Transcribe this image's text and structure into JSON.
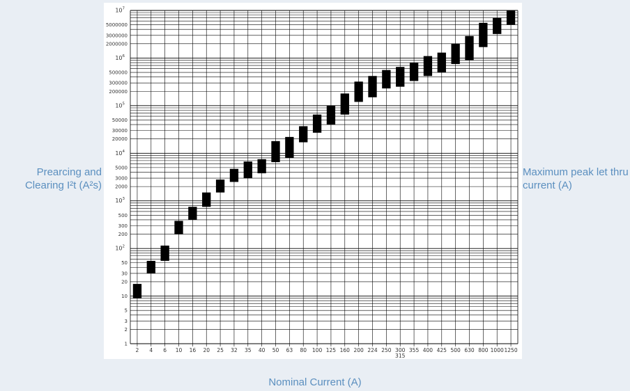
{
  "labels": {
    "left_axis": "Prearcing and Clearing I²t (A²s)",
    "right_axis": "Maximum peak let thru current (A)",
    "x_axis": "Nominal Current (A)"
  },
  "chart_data": {
    "type": "bar",
    "scale": "log",
    "ylim": [
      1,
      10000000
    ],
    "grid": true,
    "xlabel": "Nominal Current (A)",
    "ylabel": "Prearcing and Clearing I²t (A²s)",
    "ylabel_right": "Maximum peak let thru current (A)",
    "bar_color": "#000000",
    "categories": [
      "2",
      "4",
      "6",
      "10",
      "16",
      "20",
      "25",
      "32",
      "35",
      "40",
      "50",
      "63",
      "80",
      "100",
      "125",
      "160",
      "200",
      "224",
      "250",
      "300",
      "355",
      "400",
      "425",
      "500",
      "630",
      "800",
      "1000",
      "1250"
    ],
    "category_sublabels": {
      "300": "315"
    },
    "ranges": [
      [
        9,
        18
      ],
      [
        30,
        55
      ],
      [
        55,
        115
      ],
      [
        200,
        380
      ],
      [
        400,
        750
      ],
      [
        750,
        1500
      ],
      [
        1500,
        2800
      ],
      [
        2500,
        4700
      ],
      [
        3000,
        6700
      ],
      [
        3800,
        7500
      ],
      [
        6500,
        18000
      ],
      [
        8000,
        22000
      ],
      [
        17000,
        37000
      ],
      [
        27000,
        65000
      ],
      [
        40000,
        100000
      ],
      [
        65000,
        180000
      ],
      [
        120000,
        320000
      ],
      [
        150000,
        420000
      ],
      [
        230000,
        560000
      ],
      [
        250000,
        650000
      ],
      [
        330000,
        800000
      ],
      [
        420000,
        1100000
      ],
      [
        500000,
        1300000
      ],
      [
        750000,
        2000000
      ],
      [
        900000,
        2900000
      ],
      [
        1700000,
        5500000
      ],
      [
        3200000,
        7000000
      ],
      [
        5000000,
        10000000
      ]
    ],
    "y_tick_labels": {
      "1": "1",
      "2": "2",
      "3": "3",
      "5": "5",
      "10": "10",
      "20": "20",
      "30": "30",
      "50": "50",
      "200": "200",
      "300": "300",
      "500": "500",
      "2000": "2000",
      "3000": "3000",
      "5000": "5000",
      "20000": "20000",
      "30000": "30000",
      "50000": "50000",
      "200000": "200000",
      "300000": "300000",
      "500000": "500000",
      "2000000": "2000000",
      "3000000": "3000000",
      "5000000": "5000000"
    },
    "y_power_labels": {
      "100": "2",
      "1000": "3",
      "10000": "4",
      "100000": "5",
      "1000000": "6",
      "10000000": "7"
    }
  }
}
